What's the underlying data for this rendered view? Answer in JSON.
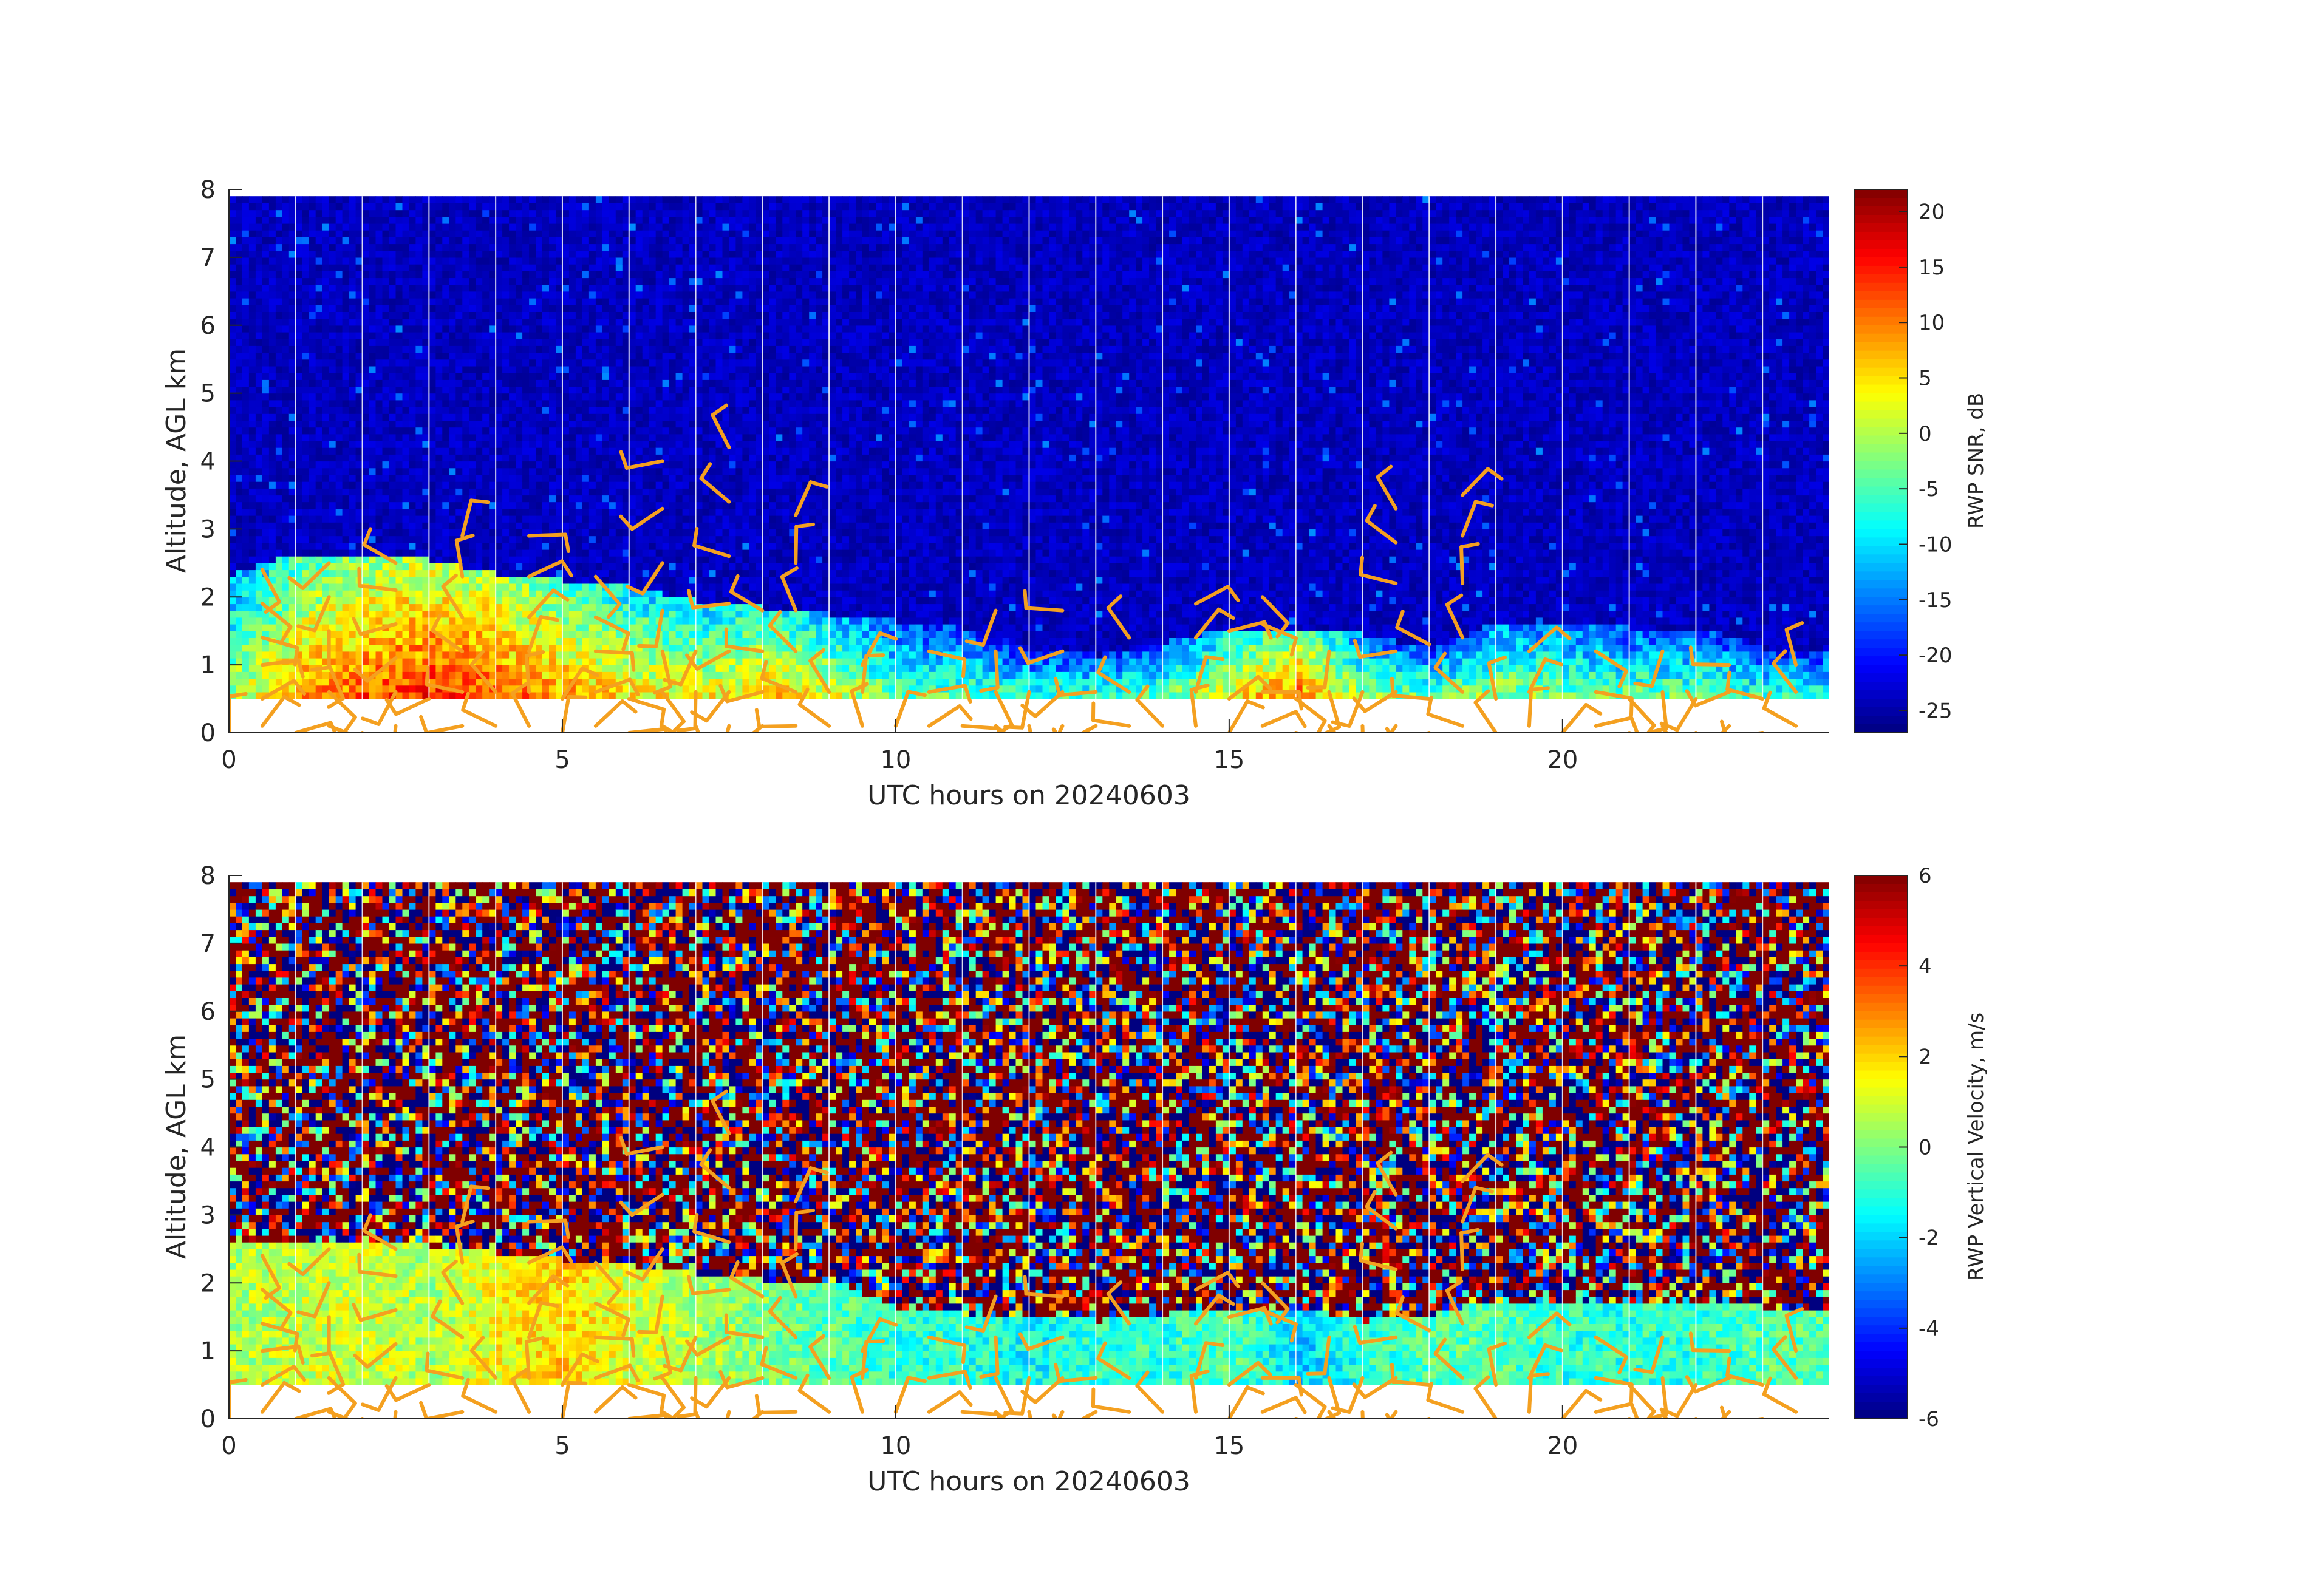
{
  "chart_data": [
    {
      "type": "heatmap",
      "xlabel": "UTC hours on 20240603",
      "ylabel": "Altitude, AGL km",
      "colorbar_label": "RWP SNR, dB",
      "xlim": [
        0,
        24
      ],
      "ylim": [
        0,
        8
      ],
      "xticks": [
        0,
        5,
        10,
        15,
        20
      ],
      "yticks": [
        0,
        1,
        2,
        3,
        4,
        5,
        6,
        7,
        8
      ],
      "clim": [
        -27,
        22
      ],
      "colorbar_ticks": [
        20,
        15,
        10,
        5,
        0,
        -5,
        -10,
        -15,
        -20,
        -25
      ],
      "colormap": "jet",
      "data_bottom_km": 0.5,
      "data_top_km": 7.9,
      "background_value": -24,
      "boundary_layer_top_km": [
        2.3,
        2.6,
        2.6,
        2.5,
        2.3,
        2.2,
        2.1,
        1.9,
        1.8,
        1.7,
        1.6,
        1.5,
        1.2,
        1.1,
        1.3,
        1.5,
        1.5,
        1.4,
        1.2,
        1.6,
        1.6,
        1.5,
        1.5,
        1.2
      ],
      "boundary_layer_peak_dB": [
        0,
        8,
        12,
        14,
        12,
        8,
        4,
        3,
        6,
        2,
        -4,
        -5,
        -6,
        -5,
        -4,
        4,
        10,
        -2,
        -4,
        -1,
        -3,
        -4,
        -4,
        -6
      ],
      "vertical_grid_hours": [
        1,
        2,
        3,
        4,
        5,
        6,
        7,
        8,
        9,
        10,
        11,
        12,
        13,
        14,
        15,
        16,
        17,
        18,
        19,
        20,
        21,
        22,
        23
      ],
      "grid": true
    },
    {
      "type": "heatmap",
      "xlabel": "UTC hours on 20240603",
      "ylabel": "Altitude, AGL km",
      "colorbar_label": "RWP Vertical Velocity, m/s",
      "xlim": [
        0,
        24
      ],
      "ylim": [
        0,
        8
      ],
      "xticks": [
        0,
        5,
        10,
        15,
        20
      ],
      "yticks": [
        0,
        1,
        2,
        3,
        4,
        5,
        6,
        7,
        8
      ],
      "clim": [
        -6,
        6
      ],
      "colorbar_ticks": [
        6,
        4,
        2,
        0,
        -2,
        -4,
        -6
      ],
      "colormap": "jet",
      "data_bottom_km": 0.5,
      "data_top_km": 7.9,
      "boundary_layer_top_km": [
        2.6,
        2.6,
        2.6,
        2.5,
        2.4,
        2.3,
        2.2,
        2.1,
        2.0,
        2.0,
        1.6,
        1.5,
        1.5,
        1.4,
        1.5,
        1.6,
        1.6,
        1.4,
        1.5,
        1.7,
        1.7,
        1.7,
        1.7,
        1.6
      ],
      "boundary_layer_velocity_ms": [
        0.5,
        0.8,
        1.0,
        0.5,
        1.5,
        2.0,
        1.0,
        0.5,
        0.0,
        -0.5,
        -1.0,
        -1.0,
        -1.5,
        -1.0,
        -1.0,
        -0.5,
        -2.0,
        -1.0,
        -0.5,
        -0.5,
        -1.0,
        -1.0,
        -1.0,
        -0.5
      ],
      "vertical_grid_hours": [
        1,
        2,
        3,
        4,
        5,
        6,
        7,
        8,
        9,
        10,
        11,
        12,
        13,
        14,
        15,
        16,
        17,
        18,
        19,
        20,
        21,
        22,
        23
      ],
      "grid": true
    }
  ],
  "wind_barbs": {
    "color": "#f4a020",
    "overlay": "both-panels",
    "hours": [
      0,
      0.5,
      1,
      1.5,
      2,
      2.5,
      3,
      3.5,
      4,
      4.5,
      5,
      5.5,
      6,
      6.5,
      7,
      7.5,
      8,
      8.5,
      9,
      9.5,
      10,
      10.5,
      11,
      11.5,
      12,
      12.5,
      13,
      13.5,
      14,
      14.5,
      15,
      15.5,
      16,
      16.5,
      17,
      17.5,
      18,
      18.5,
      19,
      19.5,
      20,
      20.5,
      21,
      21.5,
      22,
      22.5,
      23,
      23.5
    ],
    "levels_by_hour": [
      [
        0.0
      ],
      [
        0.1,
        0.5,
        1.0,
        1.4,
        1.9,
        2.4
      ],
      [
        0.0
      ],
      [
        0.1,
        0.6,
        1.0,
        1.5,
        2.0,
        2.5
      ],
      [
        0.0
      ],
      [
        0.1,
        0.6,
        1.1,
        1.6,
        2.1,
        2.5
      ],
      [
        0.0,
        0.5
      ],
      [
        0.1,
        0.6,
        1.2,
        1.7,
        2.3,
        2.9
      ],
      [
        0.1,
        0.6
      ],
      [
        0.1,
        0.6,
        1.2,
        1.7,
        2.3,
        2.9
      ],
      [
        0.0,
        0.5
      ],
      [
        0.1,
        0.6,
        1.2,
        1.7,
        2.3
      ],
      [
        0.0,
        0.5
      ],
      [
        0.1,
        0.6,
        1.2,
        1.8,
        2.5,
        3.3,
        4.0
      ],
      [
        0.1,
        0.6,
        1.2
      ],
      [
        0.1,
        0.6,
        1.2,
        1.9,
        2.6,
        3.4,
        4.2
      ],
      [
        0.1,
        0.6,
        1.2,
        1.8
      ],
      [
        0.1,
        0.6,
        1.2,
        1.8,
        2.5,
        3.2
      ],
      [
        0.1,
        0.6
      ],
      [
        0.1,
        0.6,
        1.0
      ],
      [
        0.1
      ],
      [
        0.1,
        0.6,
        1.2
      ],
      [
        0.1
      ],
      [
        0.1,
        0.6,
        1.2,
        1.8
      ],
      [
        0.1,
        0.6
      ],
      [
        0.1,
        0.6,
        1.2,
        1.8
      ],
      [
        0.1,
        0.6
      ],
      [
        0.1,
        0.6,
        1.4
      ],
      [
        0.1
      ],
      [
        0.1,
        0.6,
        1.4,
        1.9
      ],
      [
        0.0,
        0.5,
        1.5
      ],
      [
        0.1,
        0.6,
        1.6,
        2.0
      ],
      [
        0.0,
        0.5
      ],
      [
        0.1,
        0.6,
        1.2
      ],
      [
        0.1,
        0.6
      ],
      [
        0.1,
        0.6,
        1.2,
        2.2,
        2.8,
        3.3
      ],
      [
        0.0,
        0.5,
        1.3
      ],
      [
        0.1,
        0.6,
        1.4,
        2.2,
        2.9,
        3.5
      ],
      [
        0.0,
        0.5
      ],
      [
        0.1,
        0.6,
        1.2
      ],
      [
        0.0
      ],
      [
        0.1,
        0.6,
        1.2
      ],
      [
        0.0,
        0.5
      ],
      [
        0.1,
        0.6,
        1.2
      ],
      [
        0.0,
        0.5
      ],
      [
        0.1,
        0.6,
        1.0
      ],
      [
        0.0,
        0.5
      ],
      [
        0.1,
        0.6,
        1.0
      ]
    ]
  }
}
